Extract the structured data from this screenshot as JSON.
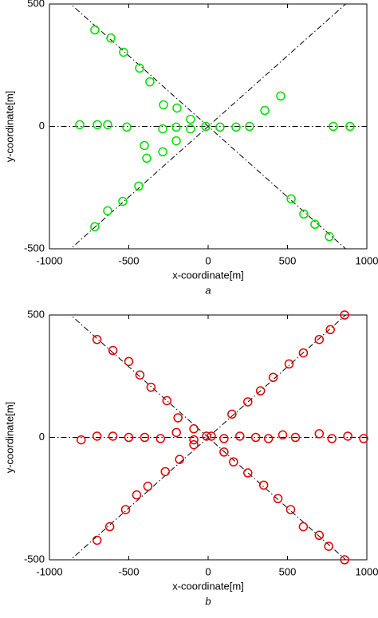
{
  "chart_data": [
    {
      "type": "scatter",
      "xlabel": "x-coordinate[m]",
      "ylabel": "y-coordinate[m]",
      "caption": "a",
      "xlim": [
        -1000,
        1000
      ],
      "ylim": [
        -500,
        500
      ],
      "xticks": [
        -1000,
        -500,
        0,
        500,
        1000
      ],
      "yticks": [
        -500,
        0,
        500
      ],
      "ref_line_slopes": [
        0,
        0.577,
        -0.577
      ],
      "series": [
        {
          "color": "#00dd00",
          "x": [
            -714,
            -613,
            -533,
            -432,
            -367,
            -281,
            -196,
            -111,
            -809,
            -698,
            -633,
            -513,
            -286,
            -201,
            -111,
            -15,
            75,
            176,
            261,
            789,
            894,
            357,
            457,
            -402,
            -387,
            -286,
            -201,
            -437,
            -538,
            -633,
            -714,
            523,
            603,
            673,
            764
          ],
          "values": [
            394,
            361,
            303,
            238,
            182,
            88,
            75,
            29,
            7,
            7,
            7,
            -3,
            -10,
            -3,
            -10,
            0,
            -3,
            -3,
            0,
            0,
            0,
            65,
            124,
            -78,
            -130,
            -104,
            -59,
            -244,
            -306,
            -345,
            -410,
            -296,
            -358,
            -400,
            -450
          ]
        }
      ]
    },
    {
      "type": "scatter",
      "xlabel": "x-coordinate[m]",
      "ylabel": "y-coordinate[m]",
      "caption": "b",
      "xlim": [
        -1000,
        1000
      ],
      "ylim": [
        -500,
        500
      ],
      "xticks": [
        -1000,
        -500,
        0,
        500,
        1000
      ],
      "yticks": [
        -500,
        0,
        500
      ],
      "ref_line_slopes": [
        0,
        0.577,
        -0.577
      ],
      "series": [
        {
          "color": "#dd0000",
          "x": [
            -700,
            -600,
            -500,
            -430,
            -360,
            -260,
            -190,
            -90,
            -10,
            150,
            250,
            330,
            410,
            510,
            600,
            700,
            770,
            860,
            -800,
            -700,
            -600,
            -500,
            -400,
            -300,
            -200,
            -90,
            20,
            100,
            200,
            300,
            380,
            470,
            550,
            700,
            780,
            880,
            980,
            -700,
            -620,
            -520,
            -450,
            -380,
            -270,
            -180,
            -90,
            100,
            160,
            250,
            350,
            440,
            520,
            600,
            700,
            760,
            860
          ],
          "values": [
            400,
            355,
            310,
            255,
            205,
            150,
            80,
            35,
            5,
            95,
            145,
            190,
            245,
            300,
            345,
            400,
            440,
            500,
            -10,
            5,
            5,
            0,
            0,
            -5,
            20,
            -10,
            5,
            -5,
            5,
            0,
            -5,
            10,
            0,
            15,
            -5,
            5,
            -5,
            -420,
            -365,
            -295,
            -235,
            -200,
            -140,
            -90,
            -30,
            -60,
            -100,
            -145,
            -195,
            -250,
            -295,
            -365,
            -400,
            -445,
            -500
          ]
        }
      ]
    }
  ]
}
